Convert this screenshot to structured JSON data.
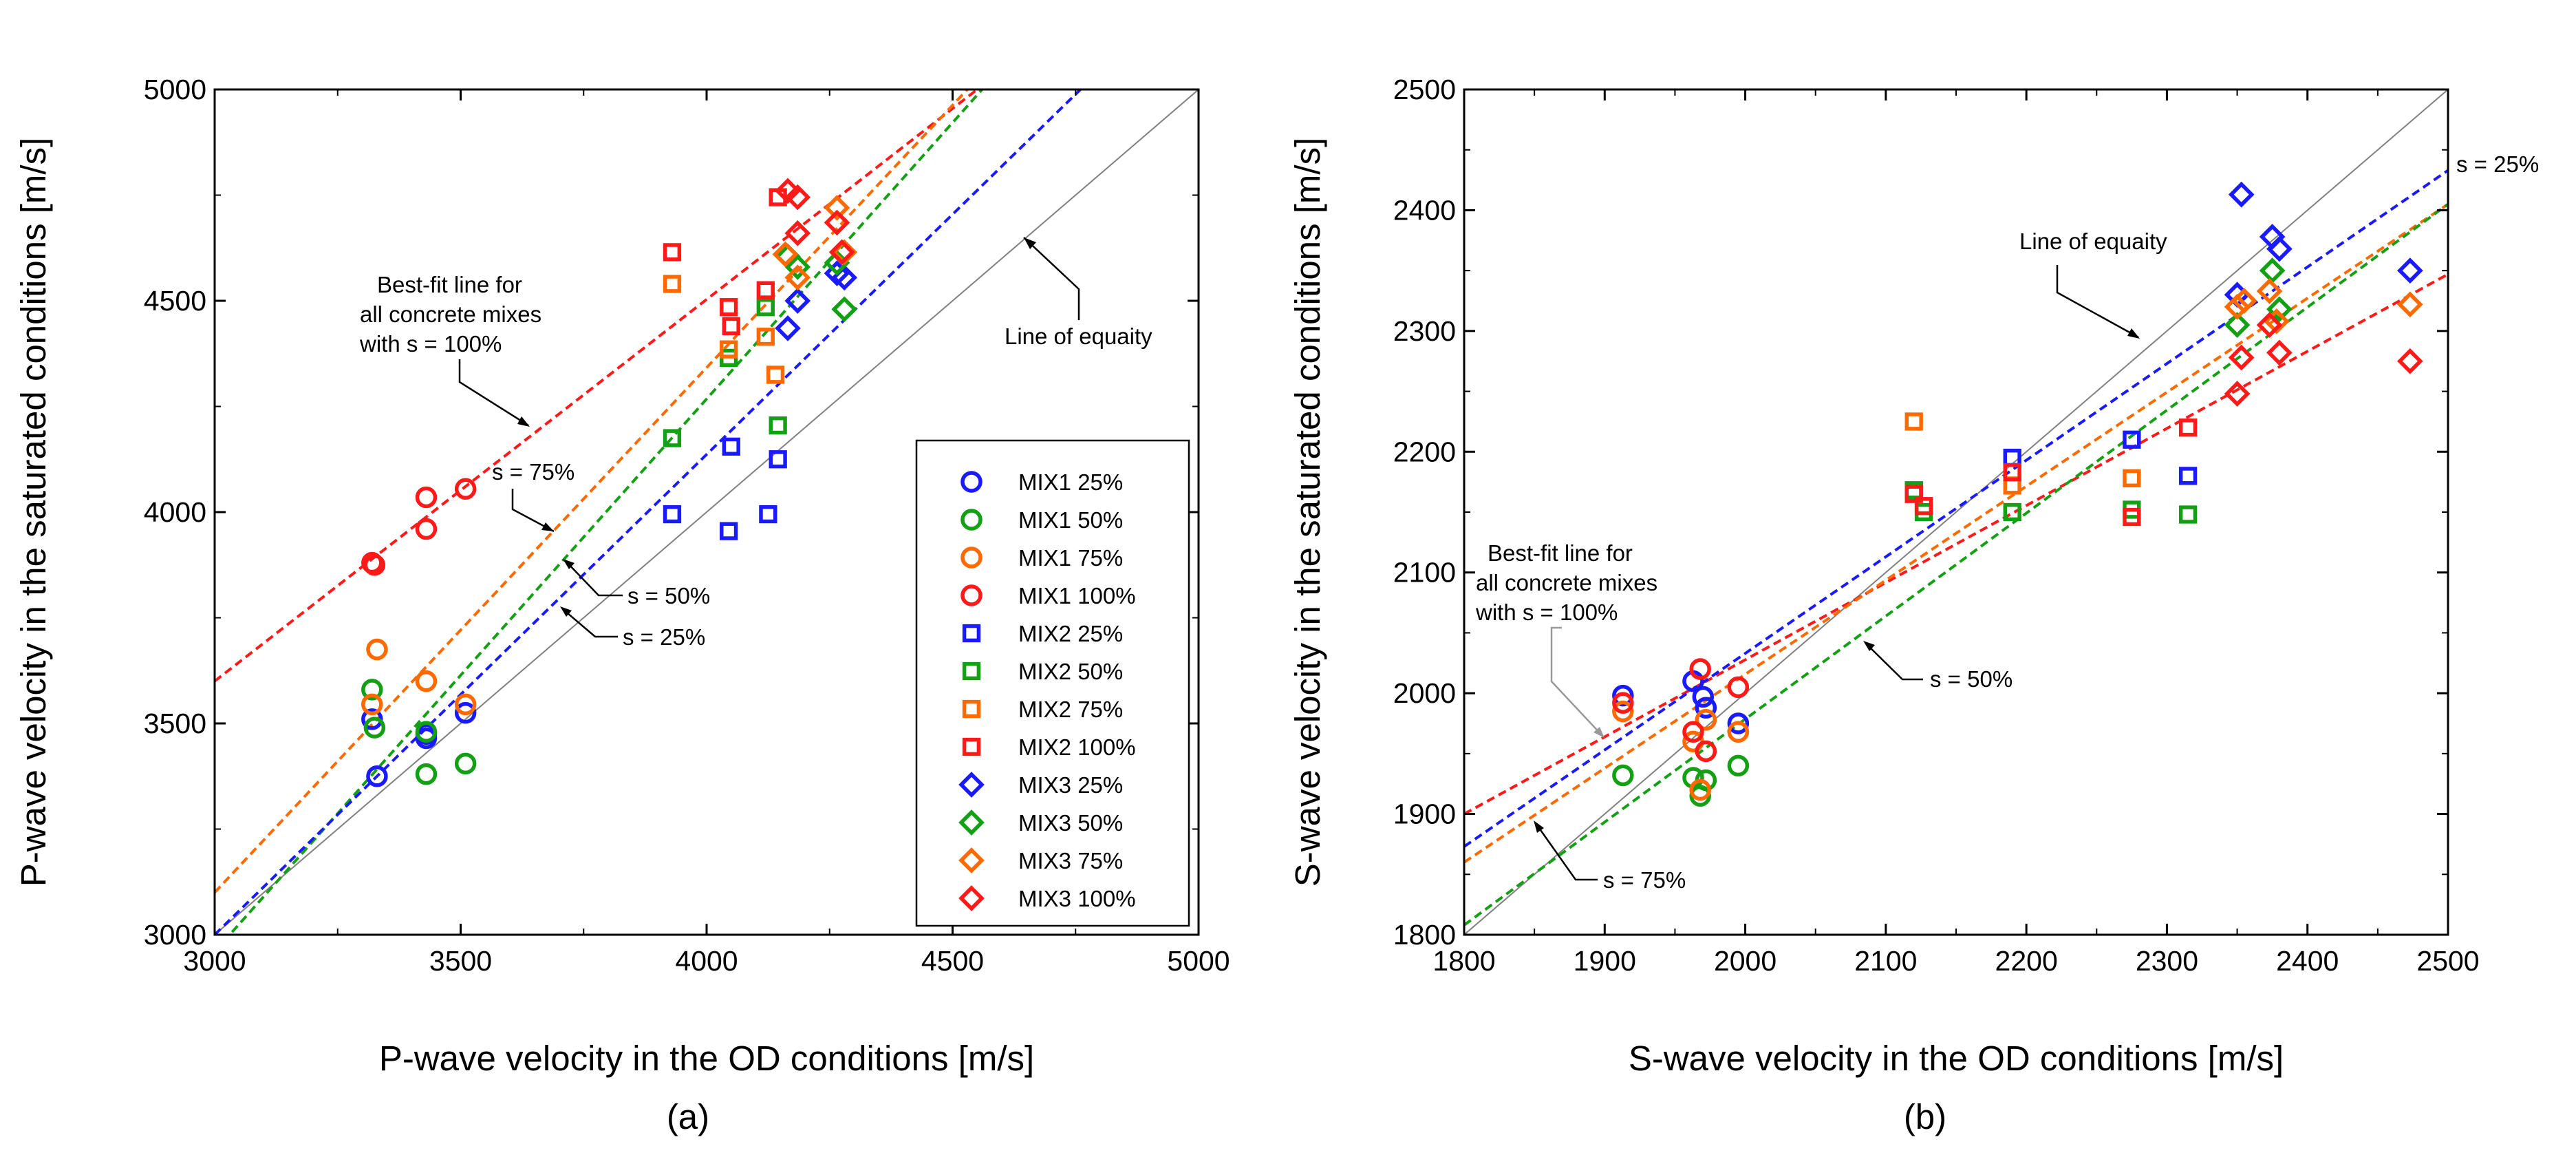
{
  "chart_data": [
    {
      "type": "scatter",
      "panel_label": "(a)",
      "xlabel": "P-wave velocity in the OD conditions [m/s]",
      "ylabel": "P-wave velocity in the saturated conditions [m/s]",
      "xlim": [
        3000,
        5000
      ],
      "ylim": [
        3000,
        5000
      ],
      "xticks": [
        "3000",
        "3500",
        "4000",
        "4500",
        "5000"
      ],
      "yticks": [
        "3000",
        "3500",
        "4000",
        "4500",
        "5000"
      ],
      "legend": [
        "MIX1 25%",
        "MIX1 50%",
        "MIX1 75%",
        "MIX1 100%",
        "MIX2 25%",
        "MIX2 50%",
        "MIX2 75%",
        "MIX2 100%",
        "MIX3 25%",
        "MIX3 50%",
        "MIX3 75%",
        "MIX3 100%"
      ],
      "annotations": {
        "equality": "Line of equaity",
        "bestfit": [
          "Best-fit line for",
          "all concrete mixes",
          "with s = 100%"
        ],
        "s75": "s = 75%",
        "s50": "s = 50%",
        "s25": "s = 25%"
      },
      "fit_lines": [
        {
          "name": "equality",
          "color": "#808080",
          "p1": [
            3000,
            3000
          ],
          "p2": [
            5000,
            5000
          ]
        },
        {
          "name": "s = 100%",
          "color": "#ff1a1a",
          "p1": [
            3000,
            3600
          ],
          "p2": [
            4550,
            5000
          ]
        },
        {
          "name": "s = 75%",
          "color": "#ff6a00",
          "p1": [
            3000,
            3100
          ],
          "p2": [
            4530,
            5000
          ]
        },
        {
          "name": "s = 50%",
          "color": "#14a014",
          "p1": [
            3000,
            2960
          ],
          "p2": [
            4560,
            5000
          ]
        },
        {
          "name": "s = 25%",
          "color": "#1a1aff",
          "p1": [
            3000,
            3000
          ],
          "p2": [
            4760,
            5000
          ]
        }
      ],
      "series": [
        {
          "name": "MIX1 25%",
          "marker": "circle",
          "color": "#1a1aff",
          "points": [
            [
              3320,
              3510
            ],
            [
              3330,
              3375
            ],
            [
              3430,
              3465
            ],
            [
              3430,
              3475
            ],
            [
              3510,
              3525
            ]
          ]
        },
        {
          "name": "MIX1 50%",
          "marker": "circle",
          "color": "#14a014",
          "points": [
            [
              3320,
              3580
            ],
            [
              3325,
              3490
            ],
            [
              3430,
              3380
            ],
            [
              3430,
              3480
            ],
            [
              3510,
              3405
            ]
          ]
        },
        {
          "name": "MIX1 75%",
          "marker": "circle",
          "color": "#ff6a00",
          "points": [
            [
              3320,
              3545
            ],
            [
              3330,
              3675
            ],
            [
              3430,
              3600
            ],
            [
              3510,
              3545
            ]
          ]
        },
        {
          "name": "MIX1 100%",
          "marker": "circle",
          "color": "#ff1a1a",
          "points": [
            [
              3320,
              3880
            ],
            [
              3325,
              3875
            ],
            [
              3430,
              4035
            ],
            [
              3430,
              3960
            ],
            [
              3510,
              4055
            ]
          ]
        },
        {
          "name": "MIX2 25%",
          "marker": "square",
          "color": "#1a1aff",
          "points": [
            [
              3930,
              3995
            ],
            [
              4045,
              3955
            ],
            [
              4050,
              4155
            ],
            [
              4125,
              3995
            ],
            [
              4145,
              4125
            ]
          ]
        },
        {
          "name": "MIX2 50%",
          "marker": "square",
          "color": "#14a014",
          "points": [
            [
              3930,
              4175
            ],
            [
              4045,
              4365
            ],
            [
              4120,
              4485
            ],
            [
              4145,
              4205
            ]
          ]
        },
        {
          "name": "MIX2 75%",
          "marker": "square",
          "color": "#ff6a00",
          "points": [
            [
              3930,
              4540
            ],
            [
              4045,
              4385
            ],
            [
              4120,
              4415
            ],
            [
              4140,
              4325
            ]
          ]
        },
        {
          "name": "MIX2 100%",
          "marker": "square",
          "color": "#ff1a1a",
          "points": [
            [
              3930,
              4615
            ],
            [
              4045,
              4485
            ],
            [
              4050,
              4440
            ],
            [
              4120,
              4525
            ],
            [
              4145,
              4745
            ]
          ]
        },
        {
          "name": "MIX3 25%",
          "marker": "diamond",
          "color": "#1a1aff",
          "points": [
            [
              4165,
              4435
            ],
            [
              4185,
              4500
            ],
            [
              4265,
              4565
            ],
            [
              4280,
              4555
            ]
          ]
        },
        {
          "name": "MIX3 50%",
          "marker": "diamond",
          "color": "#14a014",
          "points": [
            [
              4165,
              4605
            ],
            [
              4185,
              4580
            ],
            [
              4265,
              4590
            ],
            [
              4280,
              4480
            ]
          ]
        },
        {
          "name": "MIX3 75%",
          "marker": "diamond",
          "color": "#ff6a00",
          "points": [
            [
              4160,
              4610
            ],
            [
              4185,
              4555
            ],
            [
              4265,
              4720
            ],
            [
              4280,
              4615
            ]
          ]
        },
        {
          "name": "MIX3 100%",
          "marker": "diamond",
          "color": "#ff1a1a",
          "points": [
            [
              4165,
              4760
            ],
            [
              4185,
              4745
            ],
            [
              4185,
              4660
            ],
            [
              4265,
              4685
            ],
            [
              4275,
              4615
            ]
          ]
        }
      ]
    },
    {
      "type": "scatter",
      "panel_label": "(b)",
      "xlabel": "S-wave velocity in the OD conditions [m/s]",
      "ylabel": "S-wave velocity in the saturated conditions [m/s]",
      "xlim": [
        1800,
        2500
      ],
      "ylim": [
        1800,
        2500
      ],
      "xticks": [
        "1800",
        "1900",
        "2000",
        "2100",
        "2200",
        "2300",
        "2400",
        "2500"
      ],
      "yticks": [
        "1800",
        "1900",
        "2000",
        "2100",
        "2200",
        "2300",
        "2400",
        "2500"
      ],
      "annotations": {
        "equality": "Line of equaity",
        "bestfit": [
          "Best-fit line for",
          "all concrete mixes",
          "with s = 100%"
        ],
        "s25": "s = 25%",
        "s50": "s = 50%",
        "s75": "s = 75%"
      },
      "fit_lines": [
        {
          "name": "equality",
          "color": "#808080",
          "p1": [
            1800,
            1800
          ],
          "p2": [
            2500,
            2500
          ]
        },
        {
          "name": "s = 100%",
          "color": "#ff1a1a",
          "p1": [
            1800,
            1900
          ],
          "p2": [
            2500,
            2347
          ]
        },
        {
          "name": "s = 75%",
          "color": "#ff6a00",
          "p1": [
            1800,
            1860
          ],
          "p2": [
            2500,
            2405
          ]
        },
        {
          "name": "s = 50%",
          "color": "#14a014",
          "p1": [
            1800,
            1808
          ],
          "p2": [
            2500,
            2405
          ]
        },
        {
          "name": "s = 25%",
          "color": "#1a1aff",
          "p1": [
            1800,
            1873
          ],
          "p2": [
            2500,
            2433
          ]
        }
      ],
      "series": [
        {
          "name": "MIX1 25%",
          "marker": "circle",
          "color": "#1a1aff",
          "points": [
            [
              1913,
              1998
            ],
            [
              1963,
              2010
            ],
            [
              1970,
              1997
            ],
            [
              1972,
              1988
            ],
            [
              1995,
              1975
            ]
          ]
        },
        {
          "name": "MIX1 50%",
          "marker": "circle",
          "color": "#14a014",
          "points": [
            [
              1913,
              1932
            ],
            [
              1963,
              1930
            ],
            [
              1968,
              1915
            ],
            [
              1972,
              1928
            ],
            [
              1995,
              1940
            ]
          ]
        },
        {
          "name": "MIX1 75%",
          "marker": "circle",
          "color": "#ff6a00",
          "points": [
            [
              1913,
              1985
            ],
            [
              1963,
              1960
            ],
            [
              1968,
              1920
            ],
            [
              1972,
              1978
            ],
            [
              1995,
              1968
            ]
          ]
        },
        {
          "name": "MIX1 100%",
          "marker": "circle",
          "color": "#ff1a1a",
          "points": [
            [
              1913,
              1992
            ],
            [
              1963,
              1968
            ],
            [
              1968,
              2020
            ],
            [
              1972,
              1952
            ],
            [
              1995,
              2005
            ]
          ]
        },
        {
          "name": "MIX2 25%",
          "marker": "square",
          "color": "#1a1aff",
          "points": [
            [
              2120,
              2168
            ],
            [
              2190,
              2195
            ],
            [
              2275,
              2210
            ],
            [
              2315,
              2180
            ]
          ]
        },
        {
          "name": "MIX2 50%",
          "marker": "square",
          "color": "#14a014",
          "points": [
            [
              2120,
              2168
            ],
            [
              2127,
              2150
            ],
            [
              2190,
              2150
            ],
            [
              2275,
              2152
            ],
            [
              2315,
              2148
            ]
          ]
        },
        {
          "name": "MIX2 75%",
          "marker": "square",
          "color": "#ff6a00",
          "points": [
            [
              2120,
              2225
            ],
            [
              2190,
              2172
            ],
            [
              2275,
              2178
            ]
          ]
        },
        {
          "name": "MIX2 100%",
          "marker": "square",
          "color": "#ff1a1a",
          "points": [
            [
              2120,
              2165
            ],
            [
              2127,
              2155
            ],
            [
              2190,
              2183
            ],
            [
              2275,
              2146
            ],
            [
              2315,
              2220
            ]
          ]
        },
        {
          "name": "MIX3 25%",
          "marker": "diamond",
          "color": "#1a1aff",
          "points": [
            [
              2350,
              2330
            ],
            [
              2353,
              2413
            ],
            [
              2375,
              2378
            ],
            [
              2380,
              2368
            ],
            [
              2473,
              2350
            ]
          ]
        },
        {
          "name": "MIX3 50%",
          "marker": "diamond",
          "color": "#14a014",
          "points": [
            [
              2350,
              2305
            ],
            [
              2375,
              2350
            ],
            [
              2380,
              2318
            ]
          ]
        },
        {
          "name": "MIX3 75%",
          "marker": "diamond",
          "color": "#ff6a00",
          "points": [
            [
              2350,
              2320
            ],
            [
              2355,
              2325
            ],
            [
              2373,
              2333
            ],
            [
              2378,
              2308
            ],
            [
              2473,
              2322
            ]
          ]
        },
        {
          "name": "MIX3 100%",
          "marker": "diamond",
          "color": "#ff1a1a",
          "points": [
            [
              2350,
              2248
            ],
            [
              2353,
              2278
            ],
            [
              2373,
              2305
            ],
            [
              2380,
              2282
            ],
            [
              2473,
              2275
            ]
          ]
        }
      ]
    }
  ]
}
